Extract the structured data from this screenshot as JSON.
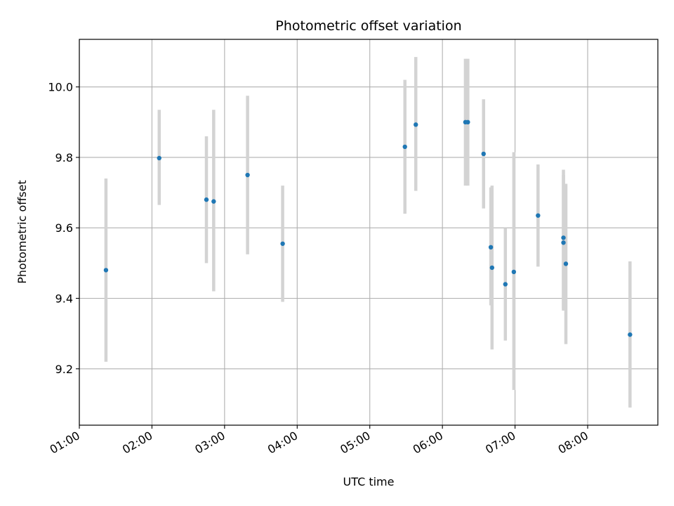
{
  "chart_data": {
    "type": "scatter",
    "title": "Photometric offset variation",
    "xlabel": "UTC time",
    "ylabel": "Photometric offset",
    "xlim": [
      "01:00",
      "08:58"
    ],
    "ylim": [
      9.04,
      10.135
    ],
    "x_ticks": [
      "01:00",
      "02:00",
      "03:00",
      "04:00",
      "05:00",
      "06:00",
      "07:00",
      "08:00"
    ],
    "y_ticks": [
      9.2,
      9.4,
      9.6,
      9.8,
      10.0
    ],
    "y_tick_labels": [
      "9.2",
      "9.4",
      "9.6",
      "9.8",
      "10.0"
    ],
    "grid": true,
    "marker_color": "#1f77b4",
    "errorbar_color": "#d3d3d3",
    "points": [
      {
        "x": "01:22",
        "y": 9.48,
        "low": 9.22,
        "high": 9.74
      },
      {
        "x": "02:06",
        "y": 9.798,
        "low": 9.665,
        "high": 9.935
      },
      {
        "x": "02:45",
        "y": 9.68,
        "low": 9.5,
        "high": 9.86
      },
      {
        "x": "02:51",
        "y": 9.675,
        "low": 9.42,
        "high": 9.935
      },
      {
        "x": "03:19",
        "y": 9.75,
        "low": 9.525,
        "high": 9.975
      },
      {
        "x": "03:48",
        "y": 9.555,
        "low": 9.39,
        "high": 9.72
      },
      {
        "x": "05:29",
        "y": 9.83,
        "low": 9.64,
        "high": 10.02
      },
      {
        "x": "05:38",
        "y": 9.893,
        "low": 9.705,
        "high": 10.085
      },
      {
        "x": "06:19",
        "y": 9.9,
        "low": 9.72,
        "high": 10.08
      },
      {
        "x": "06:21",
        "y": 9.9,
        "low": 9.72,
        "high": 10.08
      },
      {
        "x": "06:34",
        "y": 9.81,
        "low": 9.655,
        "high": 9.965
      },
      {
        "x": "06:40",
        "y": 9.545,
        "low": 9.38,
        "high": 9.715
      },
      {
        "x": "06:41",
        "y": 9.487,
        "low": 9.255,
        "high": 9.72
      },
      {
        "x": "06:52",
        "y": 9.44,
        "low": 9.28,
        "high": 9.6
      },
      {
        "x": "06:59",
        "y": 9.475,
        "low": 9.14,
        "high": 9.815
      },
      {
        "x": "07:19",
        "y": 9.635,
        "low": 9.49,
        "high": 9.78
      },
      {
        "x": "07:40",
        "y": 9.572,
        "low": 9.37,
        "high": 9.765
      },
      {
        "x": "07:40",
        "y": 9.558,
        "low": 9.365,
        "high": 9.75
      },
      {
        "x": "07:42",
        "y": 9.498,
        "low": 9.27,
        "high": 9.725
      },
      {
        "x": "08:35",
        "y": 9.297,
        "low": 9.09,
        "high": 9.505
      }
    ]
  }
}
